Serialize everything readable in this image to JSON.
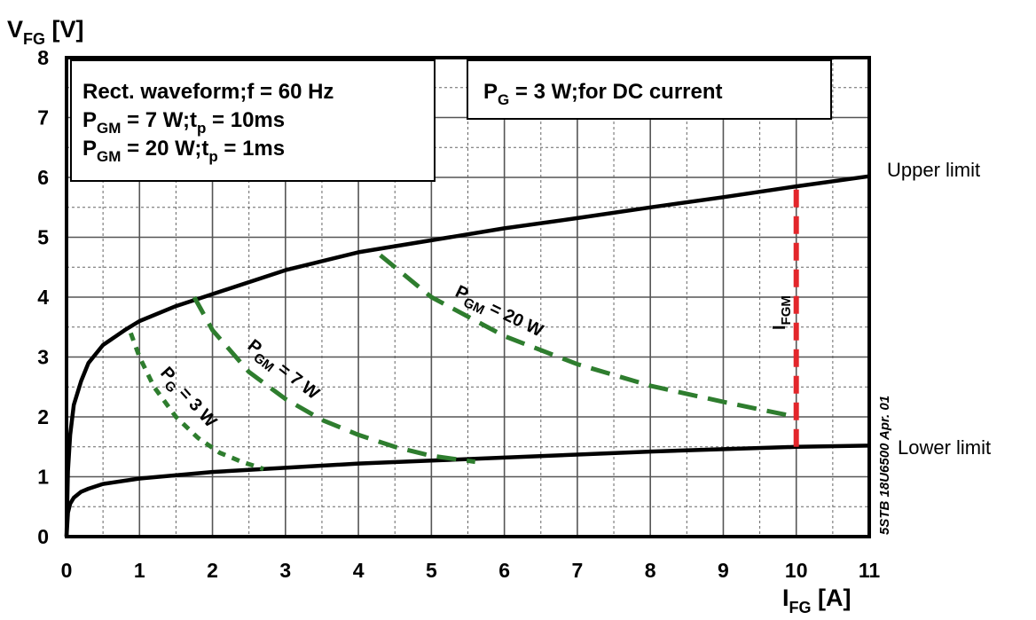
{
  "chart_data": {
    "type": "line",
    "xlabel": {
      "main": "I",
      "sub": "FG",
      "unit": " [A]"
    },
    "ylabel": {
      "main": "V",
      "sub": "FG",
      "unit": " [V]"
    },
    "xlim": [
      0,
      11
    ],
    "ylim": [
      0,
      8
    ],
    "x_ticks": [
      "0",
      "1",
      "2",
      "3",
      "4",
      "5",
      "6",
      "7",
      "8",
      "9",
      "10",
      "11"
    ],
    "y_ticks": [
      "0",
      "1",
      "2",
      "3",
      "4",
      "5",
      "6",
      "7",
      "8"
    ],
    "grid": true,
    "series": [
      {
        "name": "Upper limit",
        "style": "solid",
        "color": "#000000",
        "x": [
          0,
          0.02,
          0.05,
          0.1,
          0.2,
          0.3,
          0.5,
          0.8,
          1,
          1.5,
          2,
          3,
          4,
          5,
          6,
          7,
          8,
          9,
          10,
          11
        ],
        "y": [
          0,
          1.1,
          1.7,
          2.2,
          2.6,
          2.9,
          3.2,
          3.45,
          3.6,
          3.85,
          4.05,
          4.45,
          4.75,
          4.95,
          5.15,
          5.32,
          5.5,
          5.67,
          5.85,
          6.02
        ]
      },
      {
        "name": "Lower limit",
        "style": "solid",
        "color": "#000000",
        "x": [
          0,
          0.02,
          0.05,
          0.1,
          0.2,
          0.3,
          0.5,
          1,
          2,
          3,
          4,
          5,
          6,
          7,
          8,
          9,
          10,
          11
        ],
        "y": [
          0,
          0.4,
          0.55,
          0.65,
          0.75,
          0.8,
          0.88,
          0.97,
          1.08,
          1.15,
          1.22,
          1.27,
          1.32,
          1.37,
          1.42,
          1.46,
          1.5,
          1.52
        ]
      },
      {
        "name": "P_GM = 20 W",
        "style": "dashed",
        "color": "#2e7d2e",
        "x": [
          4.3,
          5,
          6,
          7,
          8,
          9,
          10
        ],
        "y": [
          4.7,
          4.0,
          3.35,
          2.88,
          2.52,
          2.25,
          2.0
        ]
      },
      {
        "name": "P_GM = 7 W",
        "style": "dashed",
        "color": "#2e7d2e",
        "x": [
          1.75,
          2,
          2.5,
          3,
          3.5,
          4,
          4.5,
          5,
          5.6
        ],
        "y": [
          4.0,
          3.45,
          2.75,
          2.3,
          1.95,
          1.7,
          1.5,
          1.35,
          1.25
        ]
      },
      {
        "name": "P_G = 3 W",
        "style": "dotted",
        "color": "#2e7d2e",
        "x": [
          0.88,
          1,
          1.2,
          1.5,
          1.8,
          2.1,
          2.4,
          2.7
        ],
        "y": [
          3.4,
          3.0,
          2.5,
          2.0,
          1.65,
          1.4,
          1.25,
          1.13
        ]
      },
      {
        "name": "I_FGM",
        "style": "dashed",
        "color": "#e3262b",
        "x": [
          10,
          10
        ],
        "y": [
          1.5,
          5.85
        ]
      }
    ],
    "annotations": {
      "box1": {
        "line1": "Rect. waveform;f = 60 Hz",
        "line2": {
          "p": "P",
          "sub": "GM",
          "mid": " = 7 W;t",
          "sub2": "p",
          "end": " = 10ms"
        },
        "line3": {
          "p": "P",
          "sub": "GM",
          "mid": " = 20 W;t",
          "sub2": "p",
          "end": " = 1ms"
        }
      },
      "box2": {
        "p": "P",
        "sub": "G",
        "rest": " = 3 W;for DC current"
      },
      "pgm20": {
        "p": "P",
        "sub": "GM",
        "rest": " = 20 W"
      },
      "pgm7": {
        "p": "P",
        "sub": "GM",
        "rest": " = 7 W"
      },
      "pg3": {
        "p": "P",
        "sub": "G",
        "rest": " = 3 W"
      },
      "ifgm": {
        "p": "I",
        "sub": "FGM"
      },
      "upper_limit": "Upper limit",
      "lower_limit": "Lower limit",
      "ref": "5STB 18U6500 Apr. 01"
    }
  }
}
